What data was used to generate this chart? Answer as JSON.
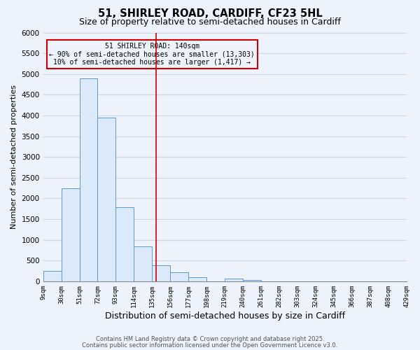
{
  "title": "51, SHIRLEY ROAD, CARDIFF, CF23 5HL",
  "subtitle": "Size of property relative to semi-detached houses in Cardiff",
  "xlabel": "Distribution of semi-detached houses by size in Cardiff",
  "ylabel": "Number of semi-detached properties",
  "bin_edges": [
    9,
    30,
    51,
    72,
    93,
    114,
    135,
    156,
    177,
    198,
    219,
    240,
    261,
    282,
    303,
    324,
    345,
    366,
    387,
    408,
    429
  ],
  "bin_counts": [
    250,
    2250,
    4900,
    3950,
    1780,
    840,
    390,
    220,
    100,
    0,
    70,
    30,
    0,
    0,
    0,
    0,
    0,
    0,
    0,
    0
  ],
  "bar_facecolor": "#dce9f8",
  "bar_edgecolor": "#5b9bd5",
  "vline_x": 140,
  "vline_color": "#cc0000",
  "annotation_title": "51 SHIRLEY ROAD: 140sqm",
  "annotation_line1": "← 90% of semi-detached houses are smaller (13,303)",
  "annotation_line2": "10% of semi-detached houses are larger (1,417) →",
  "annotation_box_edgecolor": "#cc0000",
  "ylim": [
    0,
    6000
  ],
  "yticks": [
    0,
    500,
    1000,
    1500,
    2000,
    2500,
    3000,
    3500,
    4000,
    4500,
    5000,
    5500,
    6000
  ],
  "tick_labels": [
    "9sqm",
    "30sqm",
    "51sqm",
    "72sqm",
    "93sqm",
    "114sqm",
    "135sqm",
    "156sqm",
    "177sqm",
    "198sqm",
    "219sqm",
    "240sqm",
    "261sqm",
    "282sqm",
    "303sqm",
    "324sqm",
    "345sqm",
    "366sqm",
    "387sqm",
    "408sqm",
    "429sqm"
  ],
  "footer1": "Contains HM Land Registry data © Crown copyright and database right 2025.",
  "footer2": "Contains public sector information licensed under the Open Government Licence v3.0.",
  "background_color": "#eef2fb",
  "grid_color": "#d0d8e8",
  "title_fontsize": 10.5,
  "subtitle_fontsize": 9,
  "xlabel_fontsize": 9,
  "ylabel_fontsize": 8
}
